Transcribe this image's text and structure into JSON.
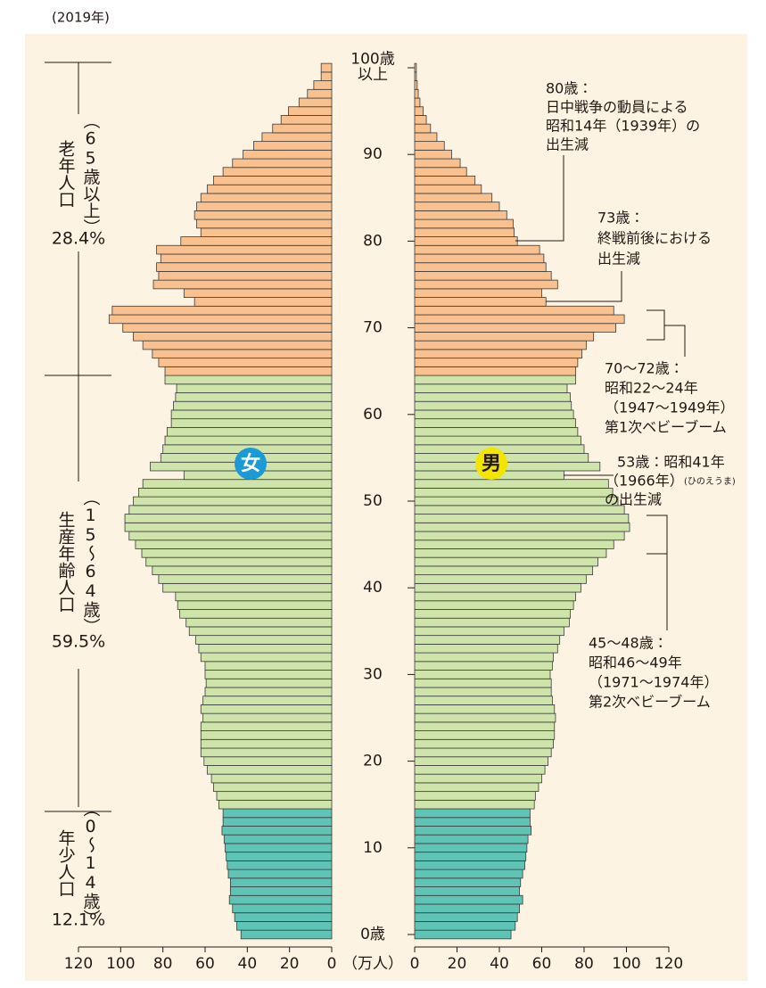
{
  "chart_data": {
    "type": "pyramid",
    "subtitle": "(2019年)",
    "x_label": "（万人）",
    "xlim": [
      0,
      120
    ],
    "xticks": [
      0,
      20,
      40,
      60,
      80,
      100,
      120
    ],
    "ylim": [
      0,
      100
    ],
    "yticks": [
      {
        "value": 0,
        "label": "0歳"
      },
      10,
      20,
      30,
      40,
      50,
      60,
      70,
      80,
      90,
      {
        "value": 100,
        "label": "100歳以上"
      }
    ],
    "y": [
      0,
      1,
      2,
      3,
      4,
      5,
      6,
      7,
      8,
      9,
      10,
      11,
      12,
      13,
      14,
      15,
      16,
      17,
      18,
      19,
      20,
      21,
      22,
      23,
      24,
      25,
      26,
      27,
      28,
      29,
      30,
      31,
      32,
      33,
      34,
      35,
      36,
      37,
      38,
      39,
      40,
      41,
      42,
      43,
      44,
      45,
      46,
      47,
      48,
      49,
      50,
      51,
      52,
      53,
      54,
      55,
      56,
      57,
      58,
      59,
      60,
      61,
      62,
      63,
      64,
      65,
      66,
      67,
      68,
      69,
      70,
      71,
      72,
      73,
      74,
      75,
      76,
      77,
      78,
      79,
      80,
      81,
      82,
      83,
      84,
      85,
      86,
      87,
      88,
      89,
      90,
      91,
      92,
      93,
      94,
      95,
      96,
      97,
      98,
      99,
      100
    ],
    "series": [
      {
        "name": "女",
        "color": "#1b9ad6",
        "text_color": "#ffffff",
        "side": "left",
        "values": [
          43,
          45,
          46,
          47,
          48.5,
          48,
          48,
          49,
          49.5,
          50,
          50.5,
          51,
          52,
          51.5,
          51.5,
          53.5,
          54.5,
          56,
          57,
          59,
          60.5,
          62,
          62,
          62,
          62,
          61,
          62,
          61,
          60,
          59.5,
          60,
          60,
          62,
          63,
          64.5,
          67.5,
          69,
          72,
          73,
          74,
          80,
          82,
          85,
          88,
          90,
          93,
          96,
          98,
          98,
          96,
          94,
          91.5,
          89.5,
          70,
          86,
          81,
          80,
          79,
          78,
          76,
          76,
          75,
          74,
          73.5,
          79,
          79,
          82,
          85,
          89.5,
          94,
          99,
          105.5,
          104,
          65,
          70,
          84.5,
          82,
          83,
          81,
          83,
          71.5,
          62,
          64,
          65,
          64,
          62,
          59,
          56,
          51.5,
          47,
          42,
          37,
          33,
          28,
          24,
          20.5,
          15.5,
          11.5,
          8.5,
          5,
          5
        ]
      },
      {
        "name": "男",
        "color": "#f3e500",
        "text_color": "#231815",
        "side": "right",
        "values": [
          45.5,
          47.5,
          48.5,
          49.5,
          51,
          49.5,
          50,
          51,
          52,
          52.5,
          53,
          53.5,
          55,
          54.5,
          54.5,
          56.5,
          57,
          58.5,
          60,
          61.5,
          63,
          64.5,
          65.5,
          66,
          66,
          66.5,
          66,
          65,
          64.5,
          64.5,
          64,
          65,
          65.5,
          67.5,
          68.5,
          70.5,
          73,
          73.5,
          75,
          76,
          78.5,
          81,
          84,
          86.5,
          90.5,
          94,
          99,
          101.5,
          101,
          99,
          96,
          93.5,
          91.5,
          70.5,
          87.5,
          82,
          80,
          78.5,
          77,
          76,
          75,
          74,
          73.5,
          72,
          76,
          76,
          77,
          79,
          81,
          84.5,
          95,
          99,
          94,
          62,
          60,
          67.5,
          64.5,
          62,
          61,
          59,
          48.5,
          47,
          46.5,
          43.5,
          40,
          36.5,
          31.5,
          28.5,
          24.5,
          21.5,
          17.5,
          14,
          10.5,
          7.5,
          5.5,
          4,
          2.5,
          1.7,
          1.2,
          0.8,
          0.8
        ]
      }
    ],
    "age_groups": [
      {
        "name": "老年人口",
        "range": "（65歳以上）",
        "share": "28.4%",
        "ages": [
          65,
          100
        ],
        "color": "#f9c18f"
      },
      {
        "name": "生産年齢人口",
        "range": "（15〜64歳）",
        "share": "59.5%",
        "ages": [
          15,
          64
        ],
        "color": "#cfe4aa"
      },
      {
        "name": "年少人口",
        "range": "（0〜14歳）",
        "share": "12.1%",
        "ages": [
          0,
          14
        ],
        "color": "#5fc4b5"
      }
    ],
    "annotations": [
      {
        "lines": [
          "80歳：",
          "日中戦争の動員による",
          "昭和14年（1939年）の",
          "出生減"
        ]
      },
      {
        "lines": [
          "73歳：",
          "終戦前後における",
          "出生減"
        ]
      },
      {
        "lines": [
          "70〜72歳：",
          "昭和22〜24年",
          "（1947〜1949年）",
          "第1次ベビーブーム"
        ]
      },
      {
        "lines": [
          "53歳：昭和41年",
          "（1966年）",
          "の出生減"
        ],
        "note": "(ひのえうま)"
      },
      {
        "lines": [
          "45〜48歳：",
          "昭和46〜49年",
          "（1971〜1974年）",
          "第2次ベビーブーム"
        ]
      }
    ]
  }
}
